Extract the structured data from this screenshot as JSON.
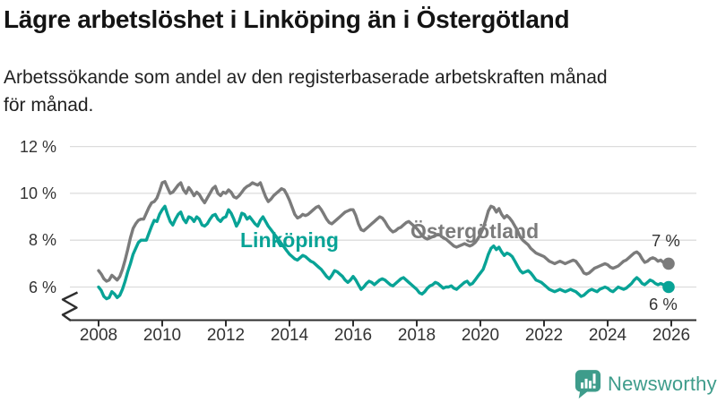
{
  "chart_data": {
    "type": "line",
    "title": "Lägre arbetslöshet i Linköping än i Östergötland",
    "subtitle": "Arbetssökande som andel av den registerbaserade arbetskraften månad för månad.",
    "subtitle_lines": [
      "Arbetssökande som andel av den registerbaserade arbetskraften månad",
      "för månad."
    ],
    "unit": "%",
    "frequency": "monthly",
    "x_start": "2008-01",
    "x_end": "2025-12",
    "x_tick_labels": [
      "2008",
      "2010",
      "2012",
      "2014",
      "2016",
      "2018",
      "2020",
      "2022",
      "2024",
      "2026"
    ],
    "y_ticks": [
      6,
      8,
      10,
      12
    ],
    "y_tick_labels": [
      "6 %",
      "8 %",
      "10 %",
      "12 %"
    ],
    "y_axis_break": true,
    "grid": "horizontal",
    "colors": {
      "grid": "#dcdcdc",
      "axis": "#2e2e2e",
      "tick_text": "#333333"
    },
    "series": [
      {
        "name": "Östergötland",
        "color": "#7b7b7b",
        "end_label": "7 %",
        "end_value": 7.0,
        "values": [
          6.7,
          6.55,
          6.35,
          6.25,
          6.3,
          6.5,
          6.4,
          6.3,
          6.45,
          6.75,
          7.15,
          7.6,
          8.1,
          8.5,
          8.7,
          8.85,
          8.9,
          8.9,
          9.15,
          9.4,
          9.6,
          9.65,
          9.8,
          10.1,
          10.45,
          10.5,
          10.25,
          10.0,
          10.05,
          10.2,
          10.35,
          10.45,
          10.15,
          10.0,
          10.25,
          10.1,
          9.9,
          10.05,
          9.95,
          9.75,
          9.6,
          9.8,
          10.0,
          10.2,
          10.3,
          10.0,
          9.9,
          10.05,
          10.0,
          10.15,
          10.05,
          9.85,
          9.8,
          9.9,
          10.05,
          10.2,
          10.3,
          10.35,
          10.45,
          10.4,
          10.35,
          10.45,
          10.15,
          9.85,
          9.65,
          9.75,
          9.9,
          10.0,
          10.1,
          10.2,
          10.15,
          9.95,
          9.7,
          9.4,
          9.1,
          8.95,
          9.0,
          9.1,
          9.05,
          9.1,
          9.2,
          9.3,
          9.4,
          9.45,
          9.3,
          9.1,
          8.9,
          8.75,
          8.7,
          8.8,
          8.9,
          9.0,
          9.1,
          9.2,
          9.25,
          9.3,
          9.3,
          9.05,
          8.7,
          8.45,
          8.4,
          8.5,
          8.6,
          8.7,
          8.8,
          8.9,
          9.0,
          8.95,
          8.8,
          8.6,
          8.45,
          8.35,
          8.4,
          8.5,
          8.55,
          8.65,
          8.75,
          8.8,
          8.7,
          8.6,
          8.5,
          8.35,
          8.2,
          8.1,
          8.05,
          8.1,
          8.15,
          8.2,
          8.25,
          8.2,
          8.1,
          8.05,
          7.95,
          7.85,
          7.75,
          7.7,
          7.75,
          7.8,
          7.85,
          7.8,
          7.75,
          7.8,
          7.9,
          8.05,
          8.25,
          8.5,
          8.85,
          9.25,
          9.45,
          9.4,
          9.2,
          9.35,
          9.1,
          8.95,
          9.05,
          8.95,
          8.8,
          8.6,
          8.4,
          8.15,
          8.0,
          7.9,
          7.8,
          7.65,
          7.55,
          7.45,
          7.4,
          7.35,
          7.3,
          7.2,
          7.1,
          7.05,
          7.0,
          7.05,
          7.1,
          7.05,
          7.0,
          7.05,
          7.1,
          7.15,
          7.1,
          6.95,
          6.8,
          6.6,
          6.55,
          6.6,
          6.7,
          6.8,
          6.85,
          6.9,
          6.95,
          7.0,
          6.95,
          6.85,
          6.8,
          6.85,
          6.9,
          7.0,
          7.1,
          7.15,
          7.25,
          7.35,
          7.45,
          7.5,
          7.4,
          7.2,
          7.05,
          7.1,
          7.2,
          7.25,
          7.2,
          7.1,
          7.15,
          7.05,
          7.0,
          7.0
        ]
      },
      {
        "name": "Linköping",
        "color": "#08a396",
        "end_label": "6 %",
        "end_value": 6.0,
        "values": [
          6.0,
          5.85,
          5.6,
          5.5,
          5.55,
          5.8,
          5.7,
          5.55,
          5.65,
          5.9,
          6.25,
          6.65,
          7.0,
          7.4,
          7.65,
          7.9,
          8.0,
          8.0,
          8.0,
          8.3,
          8.6,
          8.85,
          8.8,
          9.1,
          9.3,
          9.45,
          9.1,
          8.8,
          8.65,
          8.9,
          9.1,
          9.2,
          8.9,
          8.75,
          9.0,
          8.95,
          8.8,
          9.0,
          8.9,
          8.65,
          8.6,
          8.7,
          8.9,
          9.05,
          9.1,
          8.9,
          8.8,
          8.95,
          9.0,
          9.3,
          9.15,
          8.9,
          8.6,
          8.8,
          9.15,
          9.1,
          8.9,
          9.0,
          8.85,
          8.7,
          8.6,
          8.85,
          9.0,
          8.8,
          8.6,
          8.45,
          8.3,
          8.15,
          8.0,
          7.85,
          7.7,
          7.55,
          7.4,
          7.3,
          7.2,
          7.15,
          7.25,
          7.35,
          7.3,
          7.2,
          7.1,
          7.05,
          6.95,
          6.85,
          6.75,
          6.6,
          6.45,
          6.35,
          6.5,
          6.7,
          6.65,
          6.55,
          6.45,
          6.3,
          6.2,
          6.3,
          6.45,
          6.3,
          6.1,
          5.9,
          6.0,
          6.15,
          6.25,
          6.2,
          6.1,
          6.2,
          6.3,
          6.35,
          6.3,
          6.2,
          6.1,
          6.05,
          6.15,
          6.25,
          6.35,
          6.4,
          6.3,
          6.2,
          6.1,
          6.0,
          5.9,
          5.75,
          5.7,
          5.8,
          5.95,
          6.05,
          6.1,
          6.2,
          6.15,
          6.05,
          5.95,
          6.0,
          6.0,
          6.05,
          5.95,
          5.9,
          6.0,
          6.1,
          6.2,
          6.25,
          6.1,
          6.15,
          6.3,
          6.45,
          6.6,
          6.75,
          7.05,
          7.4,
          7.65,
          7.75,
          7.6,
          7.7,
          7.5,
          7.35,
          7.45,
          7.4,
          7.3,
          7.1,
          6.9,
          6.7,
          6.6,
          6.65,
          6.7,
          6.6,
          6.45,
          6.3,
          6.25,
          6.2,
          6.1,
          6.0,
          5.9,
          5.85,
          5.8,
          5.85,
          5.9,
          5.85,
          5.8,
          5.85,
          5.9,
          5.85,
          5.8,
          5.7,
          5.6,
          5.65,
          5.75,
          5.85,
          5.9,
          5.85,
          5.8,
          5.9,
          5.95,
          6.0,
          5.95,
          5.85,
          5.8,
          5.9,
          6.0,
          5.95,
          5.9,
          5.95,
          6.05,
          6.15,
          6.3,
          6.4,
          6.3,
          6.15,
          6.1,
          6.2,
          6.3,
          6.25,
          6.15,
          6.1,
          6.15,
          6.1,
          6.05,
          6.0
        ]
      }
    ]
  },
  "branding": {
    "logo_text": "Newsworthy",
    "logo_icon": "bar-chart-speech-bubble",
    "logo_color": "#3e9c8b"
  }
}
